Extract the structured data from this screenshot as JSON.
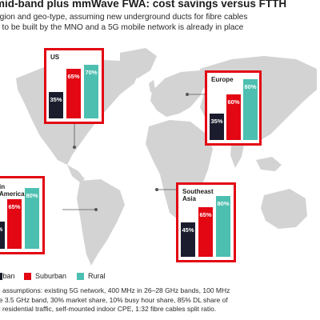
{
  "title": "mid-band plus mmWave FWA: cost savings versus FTTH",
  "subtitle_lines": [
    "egion and geo-type, assuming new underground ducts for fibre cables",
    "d to be built by the MNO and a 5G mobile network is already in place"
  ],
  "colors": {
    "urban": "#1b1d2e",
    "suburban": "#e30613",
    "rural": "#4dbfb0",
    "panel_border": "#e30613",
    "map": "#d3d3d3"
  },
  "chart_data": {
    "type": "bar",
    "categories": [
      "Urban",
      "Suburban",
      "Rural"
    ],
    "charts": [
      {
        "region": "US",
        "values": [
          35,
          65,
          70
        ],
        "labels": [
          "35%",
          "65%",
          "70%"
        ]
      },
      {
        "region": "Europe",
        "values": [
          35,
          60,
          80
        ],
        "labels": [
          "35%",
          "60%",
          "80%"
        ]
      },
      {
        "region": "America",
        "values": [
          null,
          65,
          80
        ],
        "labels": [
          "%",
          "65%",
          "80%"
        ]
      },
      {
        "region": "Southeast Asia",
        "values": [
          45,
          65,
          80
        ],
        "labels": [
          "45%",
          "65%",
          "80%"
        ]
      }
    ],
    "legend": [
      {
        "label": "Jrban",
        "color": "#1b1d2e"
      },
      {
        "label": "Suburban",
        "color": "#e30613"
      },
      {
        "label": "Rural",
        "color": "#4dbfb0"
      }
    ]
  },
  "footnote_lines": [
    "in assumptions: existing 5G network, 400 MHz in 26–28 GHz bands, 100 MHz",
    "he 3.5 GHz band, 30% market share, 10% busy hour share, 85% DL share of",
    "al residential traffic, self-mounted indoor CPE, 1:32 fibre cables split ratio."
  ]
}
